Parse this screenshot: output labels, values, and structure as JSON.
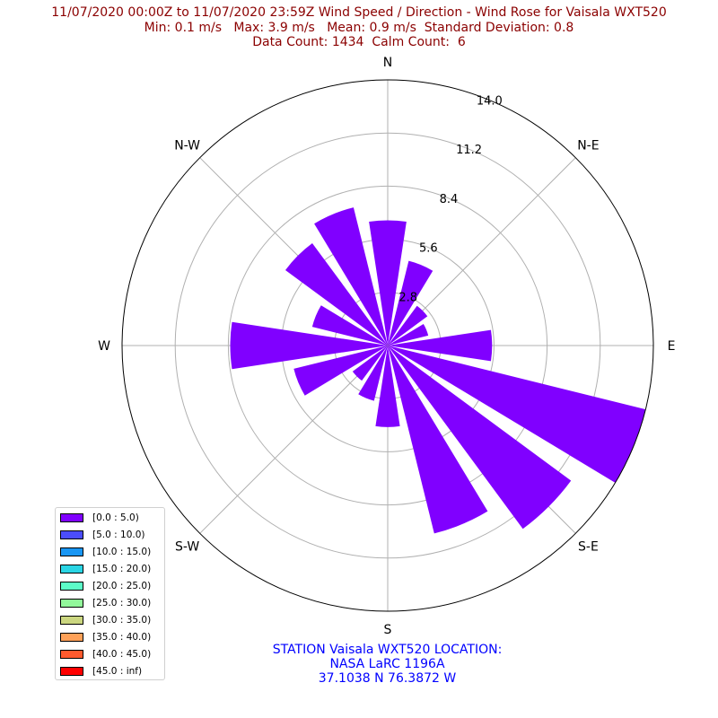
{
  "title": {
    "line1": "11/07/2020 00:00Z to 11/07/2020 23:59Z Wind Speed / Direction - Wind Rose for Vaisala WXT520",
    "line2": "Min: 0.1 m/s   Max: 3.9 m/s   Mean: 0.9 m/s  Standard Deviation: 0.8",
    "line3": "Data Count: 1434  Calm Count:  6"
  },
  "station": {
    "line1": "STATION Vaisala WXT520 LOCATION:",
    "line2": "NASA LaRC 1196A",
    "line3": "37.1038 N 76.3872 W"
  },
  "colors": {
    "title": "#8b0000",
    "station": "#0000ff",
    "bar": "#8000ff",
    "grid": "#b0b0b0"
  },
  "chart_data": {
    "type": "windrose",
    "radial_ticks": [
      "2.8",
      "5.6",
      "8.4",
      "11.2",
      "14.0"
    ],
    "radial_tick_values": [
      2.8,
      5.6,
      8.4,
      11.2,
      14.0
    ],
    "rmax": 14.0,
    "direction_labels": [
      "N",
      "N-E",
      "E",
      "S-E",
      "S",
      "S-W",
      "W",
      "N-W"
    ],
    "grid": true,
    "legend_position": "lower-left",
    "sectors": [
      {
        "direction": 0,
        "value": 6.6
      },
      {
        "direction": 22.5,
        "value": 4.6
      },
      {
        "direction": 45,
        "value": 2.6
      },
      {
        "direction": 67.5,
        "value": 2.2
      },
      {
        "direction": 90,
        "value": 5.5
      },
      {
        "direction": 112.5,
        "value": 14.0
      },
      {
        "direction": 135,
        "value": 12.0
      },
      {
        "direction": 157.5,
        "value": 10.2
      },
      {
        "direction": 180,
        "value": 4.3
      },
      {
        "direction": 202.5,
        "value": 3.0
      },
      {
        "direction": 225,
        "value": 2.3
      },
      {
        "direction": 247.5,
        "value": 5.1
      },
      {
        "direction": 270,
        "value": 8.3
      },
      {
        "direction": 292.5,
        "value": 4.1
      },
      {
        "direction": 315,
        "value": 6.7
      },
      {
        "direction": 337.5,
        "value": 7.5
      }
    ],
    "legend": [
      {
        "label": "[0.0 : 5.0)",
        "color": "#8000ff"
      },
      {
        "label": "[5.0 : 10.0)",
        "color": "#4b4dfb"
      },
      {
        "label": "[10.0 : 15.0)",
        "color": "#1996f3"
      },
      {
        "label": "[15.0 : 20.0)",
        "color": "#2ad5e4"
      },
      {
        "label": "[20.0 : 25.0)",
        "color": "#5cfcc8"
      },
      {
        "label": "[25.0 : 30.0)",
        "color": "#92f89b"
      },
      {
        "label": "[30.0 : 35.0)",
        "color": "#cbd680"
      },
      {
        "label": "[35.0 : 40.0)",
        "color": "#ffa158"
      },
      {
        "label": "[40.0 : 45.0)",
        "color": "#ff5a2e"
      },
      {
        "label": "[45.0 : inf)",
        "color": "#ff0000"
      }
    ]
  }
}
